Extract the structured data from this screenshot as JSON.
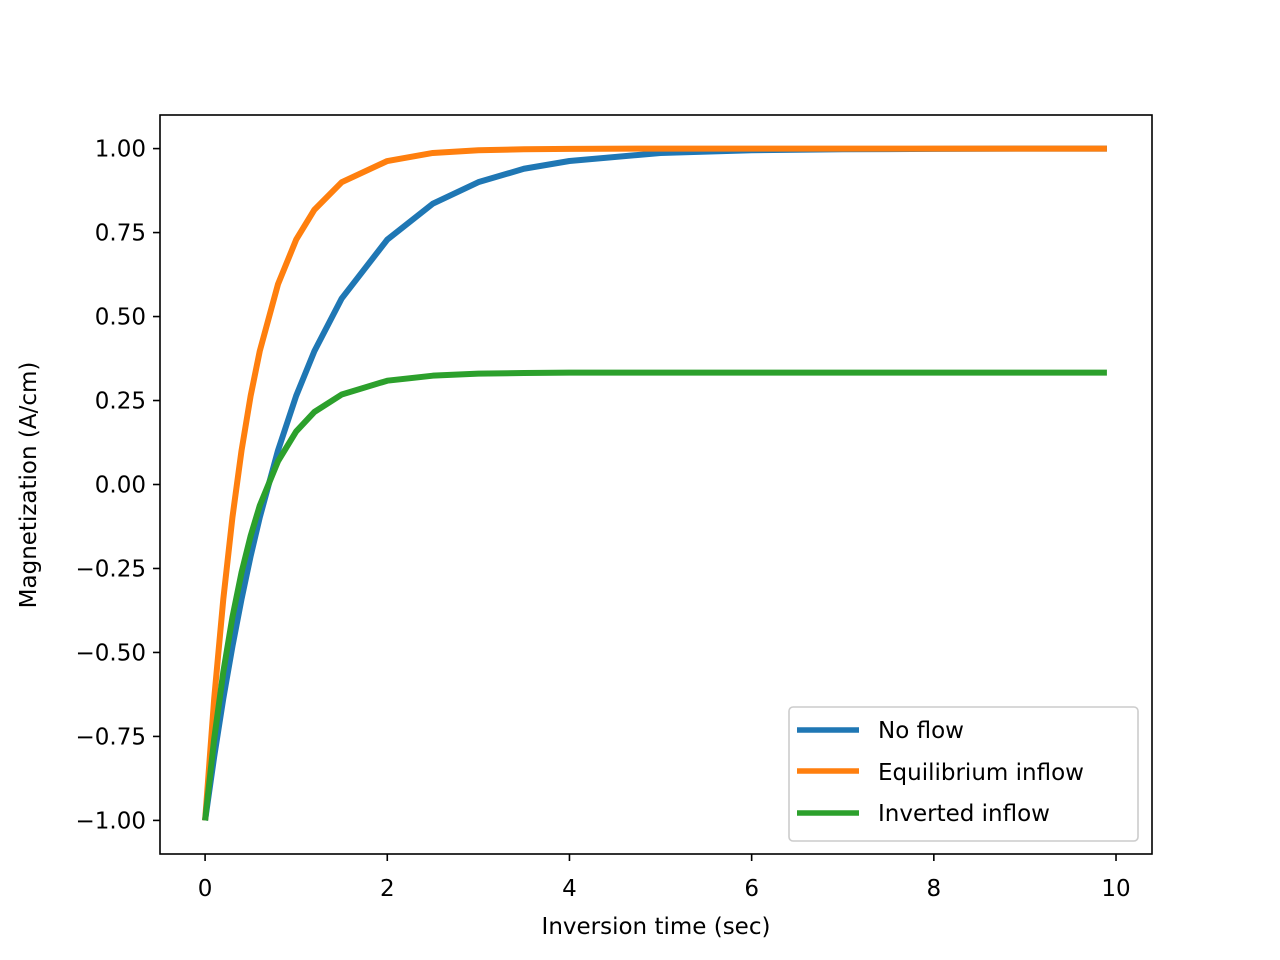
{
  "chart_data": {
    "type": "line",
    "title": "",
    "xlabel": "Inversion time (sec)",
    "ylabel": "Magnetization (A/cm)",
    "xlim": [
      -0.495,
      10.395
    ],
    "ylim": [
      -1.1,
      1.1
    ],
    "xticks": [
      0,
      2,
      4,
      6,
      8,
      10
    ],
    "xtick_labels": [
      "0",
      "2",
      "4",
      "6",
      "8",
      "10"
    ],
    "yticks": [
      1.0,
      0.75,
      0.5,
      0.25,
      0.0,
      -0.25,
      -0.5,
      -0.75,
      -1.0
    ],
    "ytick_labels": [
      "1.00",
      "0.75",
      "0.50",
      "0.25",
      "0.00",
      "−0.25",
      "−0.50",
      "−0.75",
      "−1.00"
    ],
    "grid": false,
    "legend_position": "lower-right",
    "x": [
      0,
      0.1,
      0.2,
      0.3,
      0.4,
      0.5,
      0.6,
      0.8,
      1.0,
      1.2,
      1.5,
      2.0,
      2.5,
      3.0,
      3.5,
      4.0,
      5.0,
      6.0,
      7.0,
      8.0,
      9.0,
      9.9
    ],
    "series": [
      {
        "name": "No flow",
        "color": "#1f77b4",
        "values": [
          -1.0,
          -0.81,
          -0.637,
          -0.482,
          -0.341,
          -0.213,
          -0.098,
          0.101,
          0.264,
          0.397,
          0.554,
          0.729,
          0.836,
          0.9,
          0.94,
          0.963,
          0.987,
          0.995,
          0.998,
          0.999,
          1.0,
          1.0
        ]
      },
      {
        "name": "Equilibrium inflow",
        "color": "#ff7f0e",
        "values": [
          -1.0,
          -0.637,
          -0.341,
          -0.098,
          0.101,
          0.264,
          0.397,
          0.596,
          0.729,
          0.818,
          0.9,
          0.963,
          0.987,
          0.995,
          0.998,
          0.999,
          1.0,
          1.0,
          1.0,
          1.0,
          1.0,
          1.0
        ]
      },
      {
        "name": "Inverted inflow",
        "color": "#2ca02c",
        "values": [
          -1.0,
          -0.757,
          -0.558,
          -0.395,
          -0.262,
          -0.153,
          -0.063,
          0.069,
          0.158,
          0.216,
          0.268,
          0.309,
          0.324,
          0.33,
          0.332,
          0.333,
          0.333,
          0.333,
          0.333,
          0.333,
          0.333,
          0.333
        ]
      }
    ]
  }
}
